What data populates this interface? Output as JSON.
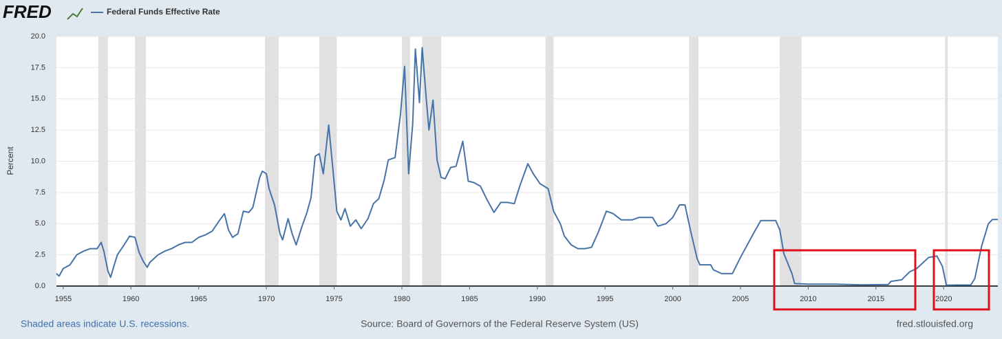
{
  "chart_data": {
    "type": "line",
    "logo": "FRED",
    "ylabel": "Percent",
    "footer_left": "Shaded areas indicate U.S. recessions.",
    "source": "Source: Board of Governors of the Federal Reserve System (US)",
    "footer_right": "fred.stlouisfed.org",
    "xlim": [
      1954.5,
      2024.0
    ],
    "xticks": [
      1955,
      1960,
      1965,
      1970,
      1975,
      1980,
      1985,
      1990,
      1995,
      2000,
      2005,
      2010,
      2015,
      2020
    ],
    "ylim": [
      0,
      20
    ],
    "yticks": [
      {
        "value": 0,
        "label": "0.0"
      },
      {
        "value": 2.5,
        "label": "2.5"
      },
      {
        "value": 5,
        "label": "5.0"
      },
      {
        "value": 7.5,
        "label": "7.5"
      },
      {
        "value": 10,
        "label": "10.0"
      },
      {
        "value": 12.5,
        "label": "12.5"
      },
      {
        "value": 15,
        "label": "15.0"
      },
      {
        "value": 17.5,
        "label": "17.5"
      },
      {
        "value": 20,
        "label": "20.0"
      }
    ],
    "grid": true,
    "recessions": [
      [
        1957.6,
        1958.3
      ],
      [
        1960.3,
        1961.1
      ],
      [
        1969.9,
        1970.9
      ],
      [
        1973.9,
        1975.2
      ],
      [
        1980.0,
        1980.6
      ],
      [
        1981.5,
        1982.9
      ],
      [
        1990.6,
        1991.2
      ],
      [
        2001.2,
        2001.9
      ],
      [
        2007.9,
        2009.5
      ],
      [
        2020.1,
        2020.3
      ]
    ],
    "x": [
      1954.5,
      1954.7,
      1955.0,
      1955.5,
      1956.0,
      1956.5,
      1957.0,
      1957.5,
      1957.8,
      1958.0,
      1958.3,
      1958.5,
      1958.8,
      1959.0,
      1959.5,
      1959.9,
      1960.3,
      1960.6,
      1960.9,
      1961.2,
      1961.4,
      1961.7,
      1962.0,
      1962.5,
      1963.0,
      1963.5,
      1964.0,
      1964.5,
      1965.0,
      1965.5,
      1966.0,
      1966.5,
      1966.9,
      1967.2,
      1967.5,
      1967.9,
      1968.3,
      1968.7,
      1969.0,
      1969.5,
      1969.7,
      1970.0,
      1970.2,
      1970.6,
      1971.0,
      1971.2,
      1971.6,
      1971.9,
      1972.2,
      1972.6,
      1973.0,
      1973.3,
      1973.6,
      1973.9,
      1974.2,
      1974.6,
      1974.9,
      1975.2,
      1975.5,
      1975.8,
      1976.2,
      1976.6,
      1977.0,
      1977.5,
      1977.9,
      1978.3,
      1978.7,
      1979.0,
      1979.5,
      1979.9,
      1980.2,
      1980.5,
      1980.8,
      1981.0,
      1981.3,
      1981.5,
      1981.8,
      1982.0,
      1982.3,
      1982.6,
      1982.9,
      1983.2,
      1983.6,
      1984.0,
      1984.5,
      1984.9,
      1985.3,
      1985.8,
      1986.3,
      1986.8,
      1987.3,
      1987.8,
      1988.3,
      1988.7,
      1989.3,
      1989.7,
      1990.2,
      1990.8,
      1991.2,
      1991.7,
      1992.0,
      1992.5,
      1993.0,
      1993.5,
      1994.0,
      1994.5,
      1995.1,
      1995.6,
      1996.2,
      1997.0,
      1997.5,
      1998.5,
      1998.9,
      1999.5,
      2000.0,
      2000.5,
      2000.9,
      2001.3,
      2001.8,
      2002.0,
      2002.8,
      2003.0,
      2003.6,
      2004.4,
      2005.0,
      2006.0,
      2006.5,
      2007.6,
      2007.9,
      2008.2,
      2008.8,
      2009.0,
      2010.0,
      2012.0,
      2014.0,
      2015.9,
      2016.1,
      2016.9,
      2017.5,
      2018.0,
      2018.9,
      2019.5,
      2019.9,
      2020.2,
      2021.0,
      2022.0,
      2022.3,
      2022.8,
      2023.3,
      2023.6,
      2024.0
    ],
    "series": [
      {
        "name": "Federal Funds Effective Rate",
        "color": "#4572a7",
        "values": [
          1.0,
          0.8,
          1.4,
          1.7,
          2.5,
          2.8,
          3.0,
          3.0,
          3.5,
          2.8,
          1.2,
          0.7,
          1.8,
          2.5,
          3.3,
          4.0,
          3.9,
          2.7,
          2.0,
          1.5,
          1.9,
          2.2,
          2.5,
          2.8,
          3.0,
          3.3,
          3.5,
          3.5,
          3.9,
          4.1,
          4.4,
          5.2,
          5.8,
          4.5,
          3.9,
          4.2,
          6.0,
          5.9,
          6.3,
          8.7,
          9.2,
          9.0,
          7.8,
          6.5,
          4.2,
          3.7,
          5.4,
          4.2,
          3.3,
          4.7,
          5.9,
          7.1,
          10.4,
          10.6,
          9.0,
          12.9,
          9.5,
          6.0,
          5.3,
          6.2,
          4.8,
          5.3,
          4.6,
          5.4,
          6.6,
          7.0,
          8.5,
          10.1,
          10.3,
          13.8,
          17.6,
          9.0,
          13.0,
          19.0,
          14.7,
          19.1,
          15.0,
          12.5,
          14.9,
          10.1,
          8.7,
          8.6,
          9.5,
          9.6,
          11.6,
          8.4,
          8.3,
          8.0,
          6.9,
          5.9,
          6.7,
          6.7,
          6.6,
          8.0,
          9.8,
          9.0,
          8.2,
          7.8,
          6.0,
          5.0,
          4.0,
          3.3,
          3.0,
          3.0,
          3.1,
          4.3,
          6.0,
          5.8,
          5.3,
          5.3,
          5.5,
          5.5,
          4.8,
          5.0,
          5.5,
          6.5,
          6.5,
          4.5,
          2.2,
          1.7,
          1.7,
          1.3,
          1.0,
          1.0,
          2.3,
          4.3,
          5.25,
          5.25,
          4.5,
          2.6,
          1.0,
          0.2,
          0.15,
          0.15,
          0.1,
          0.12,
          0.37,
          0.5,
          1.15,
          1.4,
          2.3,
          2.4,
          1.6,
          0.07,
          0.08,
          0.08,
          0.6,
          3.2,
          5.0,
          5.33,
          5.33
        ]
      }
    ]
  }
}
